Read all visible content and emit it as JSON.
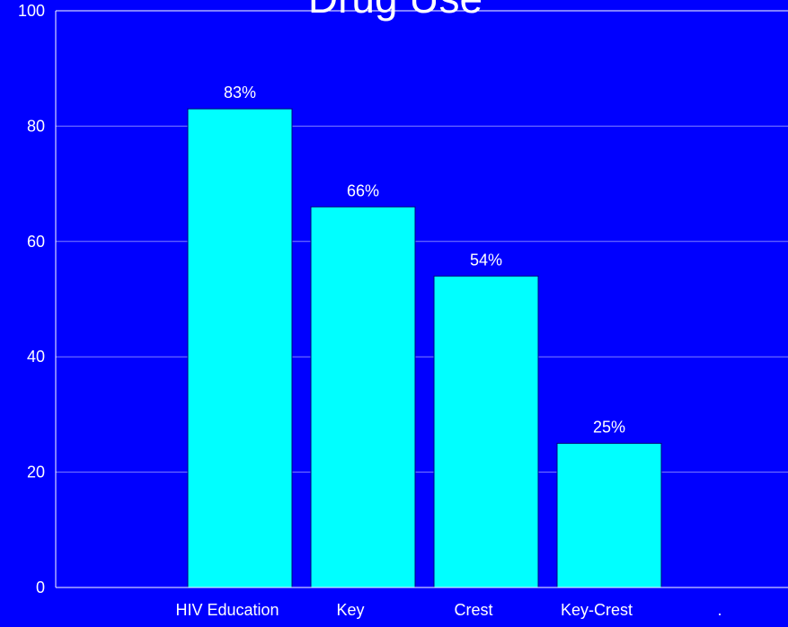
{
  "chart_data": {
    "type": "bar",
    "title": "Drug Use",
    "categories": [
      "HIV Education",
      "Key",
      "Crest",
      "Key-Crest",
      "."
    ],
    "values": [
      83,
      66,
      54,
      25,
      null
    ],
    "data_labels": [
      "83%",
      "66%",
      "54%",
      "25%",
      ""
    ],
    "xlabel": "",
    "ylabel": "",
    "ylim": [
      0,
      100
    ],
    "yticks": [
      0,
      20,
      40,
      60,
      80,
      100
    ],
    "grid": true,
    "legend": "none",
    "colors": {
      "background": "#0000ff",
      "bar_fill": "#00ffff",
      "bar_stroke": "#000080",
      "grid": "#8080ff",
      "axis": "#ffffff",
      "text": "#ffffff"
    }
  }
}
